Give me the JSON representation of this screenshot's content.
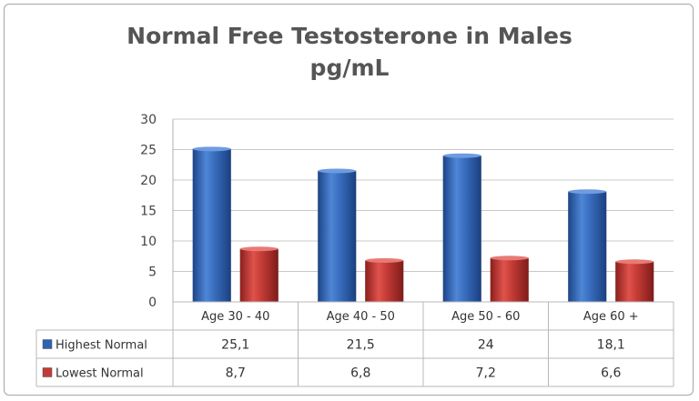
{
  "chart_data": {
    "type": "bar",
    "title": "Normal Free Testosterone  in Males",
    "subtitle": "pg/mL",
    "categories": [
      "Age 30 - 40",
      "Age 40 - 50",
      "Age 50 - 60",
      "Age 60 +"
    ],
    "series": [
      {
        "name": "Highest Normal",
        "values": [
          25.1,
          21.5,
          24,
          18.1
        ],
        "labels": [
          "25,1",
          "21,5",
          "24",
          "18,1"
        ],
        "color": "#2e63b0"
      },
      {
        "name": "Lowest Normal",
        "values": [
          8.7,
          6.8,
          7.2,
          6.6
        ],
        "labels": [
          "8,7",
          "6,8",
          "7,2",
          "6,6"
        ],
        "color": "#c23b37"
      }
    ],
    "ylim": [
      0,
      30
    ],
    "yticks": [
      0,
      5,
      10,
      15,
      20,
      25,
      30
    ],
    "grid": true,
    "data_table": true
  }
}
